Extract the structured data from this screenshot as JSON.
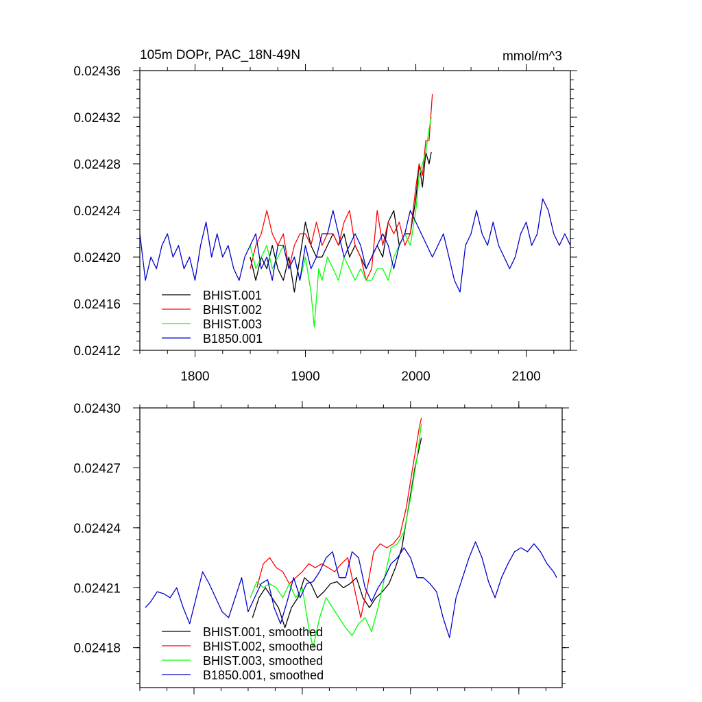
{
  "chart_data": [
    {
      "type": "line",
      "title": "105m DOPr, PAC_18N-49N",
      "units": "mmol/m^3",
      "xlim": [
        1750,
        2140
      ],
      "ylim": [
        0.02412,
        0.02436
      ],
      "xticks": [
        1800,
        1900,
        2000,
        2100
      ],
      "xtick_labels": [
        "1800",
        "1900",
        "2000",
        "2100"
      ],
      "yticks": [
        0.02412,
        0.02416,
        0.0242,
        0.02424,
        0.02428,
        0.02432,
        0.02436
      ],
      "ytick_labels": [
        "0.02412",
        "0.02416",
        "0.02420",
        "0.02424",
        "0.02428",
        "0.02432",
        "0.02436"
      ],
      "legend_position": "bottom-left",
      "series": [
        {
          "name": "BHIST.001",
          "color": "#000000",
          "x": [
            1850,
            1855,
            1860,
            1865,
            1870,
            1875,
            1880,
            1885,
            1890,
            1895,
            1900,
            1905,
            1910,
            1915,
            1920,
            1925,
            1930,
            1935,
            1940,
            1945,
            1950,
            1955,
            1960,
            1965,
            1970,
            1975,
            1980,
            1985,
            1990,
            1995,
            2000,
            2003,
            2006,
            2009,
            2012,
            2014
          ],
          "y": [
            0.0242,
            0.02418,
            0.0242,
            0.02419,
            0.02421,
            0.02419,
            0.02418,
            0.0242,
            0.02417,
            0.0242,
            0.02423,
            0.02421,
            0.0242,
            0.0242,
            0.02421,
            0.02422,
            0.02421,
            0.02422,
            0.0242,
            0.02421,
            0.0242,
            0.02419,
            0.0242,
            0.02421,
            0.0242,
            0.02423,
            0.02424,
            0.02421,
            0.02422,
            0.02422,
            0.02425,
            0.02428,
            0.02426,
            0.02429,
            0.02428,
            0.02429
          ]
        },
        {
          "name": "BHIST.002",
          "color": "#ff0000",
          "x": [
            1850,
            1855,
            1860,
            1865,
            1870,
            1875,
            1880,
            1885,
            1890,
            1895,
            1900,
            1905,
            1910,
            1915,
            1920,
            1925,
            1930,
            1935,
            1940,
            1945,
            1950,
            1955,
            1960,
            1965,
            1970,
            1975,
            1980,
            1985,
            1990,
            1995,
            2000,
            2003,
            2006,
            2009,
            2012,
            2015
          ],
          "y": [
            0.02419,
            0.02421,
            0.02422,
            0.02424,
            0.02422,
            0.02421,
            0.02422,
            0.02419,
            0.02421,
            0.02422,
            0.02422,
            0.02421,
            0.02423,
            0.02421,
            0.02422,
            0.02422,
            0.02421,
            0.02423,
            0.02424,
            0.02421,
            0.0242,
            0.02418,
            0.02419,
            0.02424,
            0.02421,
            0.02423,
            0.02422,
            0.02423,
            0.02421,
            0.02422,
            0.02426,
            0.02428,
            0.02427,
            0.0243,
            0.0243,
            0.02434
          ]
        },
        {
          "name": "BHIST.003",
          "color": "#00ff00",
          "x": [
            1850,
            1855,
            1860,
            1865,
            1870,
            1875,
            1880,
            1885,
            1890,
            1895,
            1900,
            1905,
            1908,
            1912,
            1915,
            1920,
            1925,
            1930,
            1935,
            1940,
            1945,
            1950,
            1955,
            1960,
            1965,
            1970,
            1975,
            1980,
            1985,
            1990,
            1995,
            2000,
            2003,
            2006,
            2009,
            2012,
            2014
          ],
          "y": [
            0.02421,
            0.02419,
            0.0242,
            0.02421,
            0.02419,
            0.0242,
            0.02421,
            0.02419,
            0.0242,
            0.02418,
            0.0242,
            0.02417,
            0.02414,
            0.02419,
            0.02418,
            0.0242,
            0.02419,
            0.02418,
            0.0242,
            0.02419,
            0.02418,
            0.02419,
            0.02418,
            0.02418,
            0.02419,
            0.02419,
            0.02418,
            0.0242,
            0.02421,
            0.02422,
            0.02421,
            0.02424,
            0.02427,
            0.02428,
            0.02429,
            0.02431,
            0.02432
          ]
        },
        {
          "name": "B1850.001",
          "color": "#0000cc",
          "x": [
            1750,
            1755,
            1760,
            1765,
            1770,
            1775,
            1780,
            1785,
            1790,
            1795,
            1800,
            1805,
            1810,
            1815,
            1820,
            1825,
            1830,
            1835,
            1840,
            1845,
            1850,
            1855,
            1860,
            1865,
            1870,
            1875,
            1880,
            1885,
            1890,
            1895,
            1900,
            1905,
            1910,
            1915,
            1920,
            1925,
            1930,
            1935,
            1940,
            1945,
            1950,
            1955,
            1960,
            1965,
            1970,
            1975,
            1980,
            1985,
            1990,
            1995,
            2000,
            2005,
            2010,
            2015,
            2020,
            2025,
            2030,
            2035,
            2040,
            2045,
            2050,
            2055,
            2060,
            2065,
            2070,
            2075,
            2080,
            2085,
            2090,
            2095,
            2100,
            2105,
            2110,
            2115,
            2120,
            2125,
            2130,
            2135,
            2140
          ],
          "y": [
            0.02422,
            0.02418,
            0.0242,
            0.02419,
            0.02421,
            0.02422,
            0.0242,
            0.02421,
            0.02419,
            0.0242,
            0.02418,
            0.02421,
            0.02423,
            0.0242,
            0.02422,
            0.0242,
            0.02421,
            0.02419,
            0.02418,
            0.0242,
            0.02421,
            0.02422,
            0.02419,
            0.0242,
            0.02418,
            0.02421,
            0.02421,
            0.02419,
            0.0242,
            0.02418,
            0.02421,
            0.02419,
            0.0242,
            0.02422,
            0.02422,
            0.02424,
            0.02422,
            0.0242,
            0.02421,
            0.02422,
            0.02421,
            0.02419,
            0.0242,
            0.02421,
            0.02422,
            0.02421,
            0.02419,
            0.02421,
            0.02422,
            0.02424,
            0.02423,
            0.02422,
            0.02421,
            0.0242,
            0.02421,
            0.02422,
            0.0242,
            0.02418,
            0.02417,
            0.02421,
            0.02422,
            0.02424,
            0.02422,
            0.02421,
            0.02423,
            0.02421,
            0.0242,
            0.02419,
            0.0242,
            0.02422,
            0.02423,
            0.02421,
            0.02422,
            0.02425,
            0.02424,
            0.02422,
            0.02421,
            0.02422,
            0.02421
          ]
        }
      ]
    },
    {
      "type": "line",
      "title": "",
      "xlim": [
        1750,
        2140
      ],
      "ylim": [
        0.02416,
        0.0243
      ],
      "xticks": [
        1800,
        1900,
        2000,
        2100
      ],
      "xtick_labels": [
        "",
        "",
        "",
        ""
      ],
      "yticks": [
        0.02418,
        0.02421,
        0.02424,
        0.02427,
        0.0243
      ],
      "ytick_labels": [
        "0.02418",
        "0.02421",
        "0.02424",
        "0.02427",
        "0.02430"
      ],
      "legend_position": "bottom-left",
      "series": [
        {
          "name": "BHIST.001, smoothed",
          "color": "#000000",
          "x": [
            1854,
            1860,
            1866,
            1872,
            1878,
            1884,
            1890,
            1896,
            1902,
            1908,
            1914,
            1920,
            1926,
            1932,
            1938,
            1944,
            1950,
            1956,
            1962,
            1968,
            1974,
            1980,
            1986,
            1992,
            1998,
            2004,
            2010
          ],
          "y": [
            0.024195,
            0.024205,
            0.02421,
            0.024205,
            0.0242,
            0.02419,
            0.0242,
            0.024205,
            0.024215,
            0.024212,
            0.024205,
            0.024208,
            0.024212,
            0.024213,
            0.02421,
            0.024212,
            0.024215,
            0.024205,
            0.0242,
            0.024205,
            0.024208,
            0.024212,
            0.02422,
            0.02423,
            0.02425,
            0.02427,
            0.024285
          ]
        },
        {
          "name": "BHIST.002, smoothed",
          "color": "#ff0000",
          "x": [
            1858,
            1864,
            1870,
            1876,
            1882,
            1888,
            1894,
            1900,
            1906,
            1912,
            1918,
            1924,
            1930,
            1936,
            1942,
            1948,
            1954,
            1960,
            1966,
            1972,
            1978,
            1984,
            1990,
            1996,
            2002,
            2008,
            2010
          ],
          "y": [
            0.02421,
            0.024222,
            0.024225,
            0.02422,
            0.024218,
            0.024212,
            0.024215,
            0.024218,
            0.024222,
            0.02422,
            0.024222,
            0.02422,
            0.024218,
            0.024222,
            0.024225,
            0.02421,
            0.024195,
            0.02421,
            0.024228,
            0.024232,
            0.02423,
            0.024232,
            0.024236,
            0.02425,
            0.02427,
            0.02429,
            0.024295
          ]
        },
        {
          "name": "BHIST.003, smoothed",
          "color": "#00ff00",
          "x": [
            1852,
            1858,
            1864,
            1870,
            1876,
            1882,
            1888,
            1894,
            1900,
            1906,
            1910,
            1916,
            1922,
            1928,
            1934,
            1940,
            1946,
            1952,
            1958,
            1964,
            1970,
            1976,
            1982,
            1988,
            1994,
            2000,
            2006,
            2010
          ],
          "y": [
            0.024205,
            0.024213,
            0.02421,
            0.024212,
            0.02421,
            0.024205,
            0.024212,
            0.024205,
            0.02421,
            0.02419,
            0.02418,
            0.024195,
            0.024205,
            0.0242,
            0.024195,
            0.02419,
            0.024186,
            0.024192,
            0.024195,
            0.024188,
            0.0242,
            0.024215,
            0.02423,
            0.024232,
            0.024238,
            0.024255,
            0.024275,
            0.024292
          ]
        },
        {
          "name": "B1850.001, smoothed",
          "color": "#0000cc",
          "x": [
            1755,
            1760,
            1766,
            1772,
            1778,
            1784,
            1790,
            1796,
            1802,
            1808,
            1814,
            1820,
            1826,
            1832,
            1838,
            1844,
            1850,
            1856,
            1862,
            1868,
            1874,
            1880,
            1886,
            1892,
            1898,
            1904,
            1910,
            1916,
            1922,
            1928,
            1934,
            1940,
            1946,
            1952,
            1958,
            1964,
            1970,
            1976,
            1982,
            1988,
            1994,
            2000,
            2006,
            2012,
            2018,
            2024,
            2030,
            2036,
            2042,
            2048,
            2054,
            2060,
            2066,
            2072,
            2078,
            2084,
            2090,
            2096,
            2102,
            2108,
            2114,
            2120,
            2126,
            2132,
            2135
          ],
          "y": [
            0.0242,
            0.024203,
            0.024208,
            0.024207,
            0.024205,
            0.02421,
            0.0242,
            0.024192,
            0.024205,
            0.024218,
            0.024212,
            0.024205,
            0.024198,
            0.024195,
            0.024205,
            0.024215,
            0.024198,
            0.024205,
            0.024212,
            0.024214,
            0.0242,
            0.024192,
            0.024203,
            0.024215,
            0.024205,
            0.024212,
            0.024213,
            0.024218,
            0.024225,
            0.024228,
            0.024215,
            0.024215,
            0.024228,
            0.024225,
            0.02421,
            0.024203,
            0.02421,
            0.024215,
            0.024222,
            0.024225,
            0.02423,
            0.024225,
            0.024215,
            0.024215,
            0.024212,
            0.024208,
            0.024195,
            0.024185,
            0.024205,
            0.024215,
            0.024225,
            0.024233,
            0.024225,
            0.024213,
            0.024205,
            0.024215,
            0.024222,
            0.024228,
            0.02423,
            0.024228,
            0.024232,
            0.024228,
            0.024222,
            0.024218,
            0.024215
          ]
        }
      ]
    }
  ]
}
